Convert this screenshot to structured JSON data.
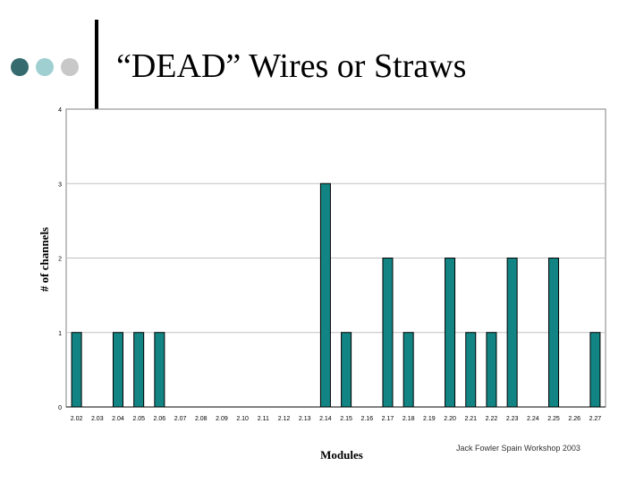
{
  "slide": {
    "title": "“DEAD” Wires or Straws",
    "footer": "Jack Fowler Spain Workshop 2003"
  },
  "colors": {
    "dot1": "#356b6e",
    "dot2": "#9fcfd1",
    "dot3": "#c8c8c8",
    "bar": "#138484",
    "bar_stroke": "#000000",
    "grid": "#c0c0c0"
  },
  "chart_data": {
    "type": "bar",
    "title": "",
    "xlabel": "Modules",
    "ylabel": "# of channels",
    "ylim": [
      0,
      4
    ],
    "yticks": [
      0,
      1,
      2,
      3,
      4
    ],
    "grid": true,
    "categories": [
      "2.02",
      "2.03",
      "2.04",
      "2.05",
      "2.06",
      "2.07",
      "2.08",
      "2.09",
      "2.10",
      "2.11",
      "2.12",
      "2.13",
      "2.14",
      "2.15",
      "2.16",
      "2.17",
      "2.18",
      "2.19",
      "2.20",
      "2.21",
      "2.22",
      "2.23",
      "2.24",
      "2.25",
      "2.26",
      "2.27"
    ],
    "values": [
      1,
      0,
      1,
      1,
      1,
      0,
      0,
      0,
      0,
      0,
      0,
      0,
      3,
      1,
      0,
      2,
      1,
      0,
      2,
      1,
      1,
      2,
      0,
      2,
      0,
      1
    ]
  }
}
